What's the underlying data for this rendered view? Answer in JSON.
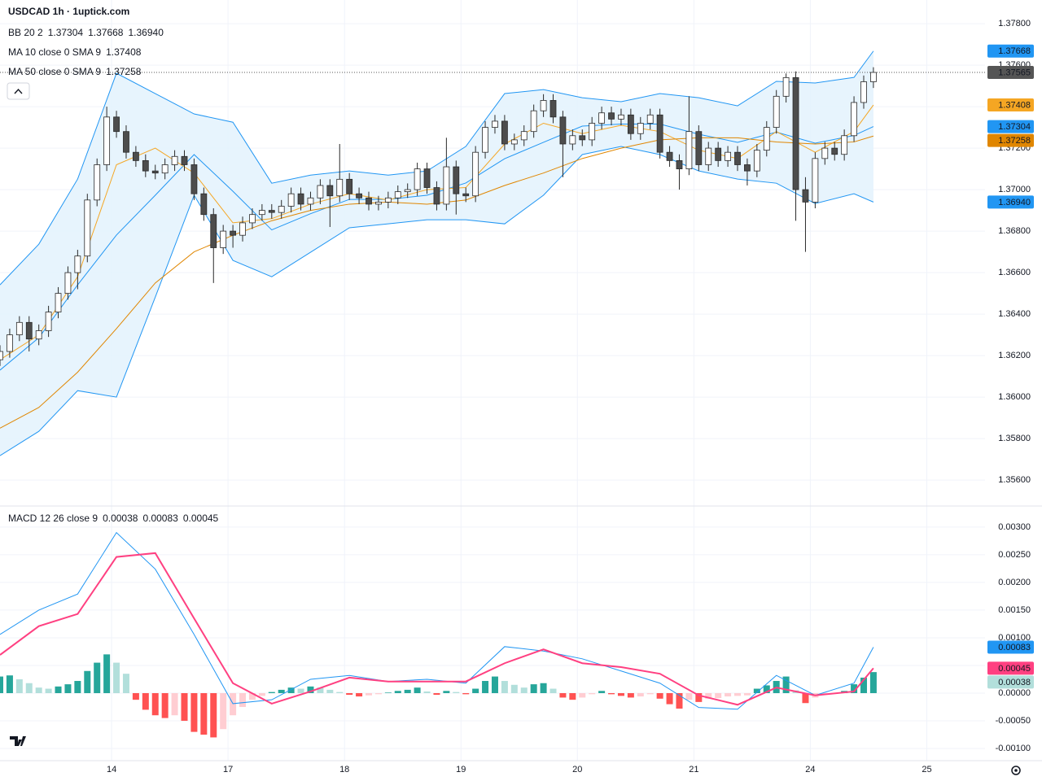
{
  "chart_data": [
    {
      "type": "candlestick",
      "title": "USDCAD 1h · 1uptick.com",
      "x": [
        1,
        3,
        5,
        7,
        9,
        11,
        13,
        15,
        17,
        19,
        21,
        23,
        25,
        27,
        29,
        31,
        33,
        35,
        37,
        39,
        41,
        43,
        45,
        47,
        49,
        51,
        53,
        55,
        57,
        59,
        61,
        63,
        65,
        67,
        69,
        71,
        73,
        75,
        77,
        79,
        81,
        83,
        85,
        87,
        89,
        91,
        93,
        95,
        97,
        99,
        101,
        103,
        105,
        107,
        109,
        111,
        113,
        115,
        117,
        119,
        121,
        123,
        125,
        127,
        129,
        131,
        133,
        135,
        137,
        139,
        141,
        143,
        145,
        147,
        149,
        151,
        153,
        155,
        157,
        159,
        161,
        163,
        165,
        167,
        169,
        171,
        173,
        175,
        177,
        179,
        181
      ],
      "open": [
        1.3618,
        1.3622,
        1.363,
        1.3636,
        1.3628,
        1.3632,
        1.3641,
        1.365,
        1.366,
        1.3668,
        1.3695,
        1.3712,
        1.3735,
        1.3728,
        1.3718,
        1.3714,
        1.3709,
        1.3708,
        1.3712,
        1.3716,
        1.3712,
        1.3698,
        1.3688,
        1.3672,
        1.368,
        1.3678,
        1.3684,
        1.3688,
        1.369,
        1.3689,
        1.3692,
        1.3698,
        1.3693,
        1.3696,
        1.3702,
        1.3697,
        1.3705,
        1.3698,
        1.3696,
        1.3693,
        1.3694,
        1.3696,
        1.3699,
        1.37,
        1.371,
        1.3701,
        1.3693,
        1.3711,
        1.3698,
        1.3697,
        1.3718,
        1.373,
        1.3733,
        1.3722,
        1.3724,
        1.3728,
        1.3738,
        1.3743,
        1.3735,
        1.3722,
        1.3726,
        1.3724,
        1.3732,
        1.3737,
        1.3734,
        1.3736,
        1.3727,
        1.3732,
        1.3736,
        1.3718,
        1.3714,
        1.371,
        1.3728,
        1.3712,
        1.372,
        1.3714,
        1.3718,
        1.3712,
        1.3709,
        1.3719,
        1.373,
        1.3745,
        1.3754,
        1.37,
        1.3694,
        1.3715,
        1.372,
        1.3717,
        1.3726,
        1.3742,
        1.3752
      ],
      "high": [
        1.3625,
        1.3633,
        1.3639,
        1.3639,
        1.3635,
        1.3644,
        1.3653,
        1.3663,
        1.3671,
        1.3698,
        1.3715,
        1.374,
        1.3738,
        1.3731,
        1.3721,
        1.3717,
        1.3712,
        1.3715,
        1.3719,
        1.3719,
        1.3715,
        1.3701,
        1.3691,
        1.3683,
        1.3683,
        1.3687,
        1.3691,
        1.3693,
        1.3693,
        1.3695,
        1.3701,
        1.3701,
        1.3699,
        1.3705,
        1.3705,
        1.3722,
        1.3708,
        1.3701,
        1.3699,
        1.3697,
        1.3699,
        1.3702,
        1.3703,
        1.3713,
        1.3713,
        1.3704,
        1.3725,
        1.3714,
        1.3701,
        1.3721,
        1.3733,
        1.3736,
        1.3736,
        1.3727,
        1.3731,
        1.3741,
        1.3746,
        1.3746,
        1.3738,
        1.3729,
        1.3729,
        1.3735,
        1.374,
        1.374,
        1.3739,
        1.3739,
        1.3735,
        1.3739,
        1.3739,
        1.3721,
        1.3717,
        1.3745,
        1.3731,
        1.3723,
        1.3723,
        1.3721,
        1.3721,
        1.3715,
        1.3722,
        1.3733,
        1.3748,
        1.3756,
        1.3757,
        1.3706,
        1.3718,
        1.3723,
        1.3723,
        1.3729,
        1.3745,
        1.3755,
        1.3759
      ],
      "low": [
        1.3615,
        1.3619,
        1.3627,
        1.3622,
        1.3625,
        1.3629,
        1.3638,
        1.3647,
        1.3652,
        1.3665,
        1.3692,
        1.3709,
        1.3725,
        1.3715,
        1.3711,
        1.3706,
        1.3705,
        1.3705,
        1.3709,
        1.3709,
        1.3695,
        1.3685,
        1.3655,
        1.3669,
        1.3672,
        1.3675,
        1.3681,
        1.3685,
        1.3686,
        1.3686,
        1.3689,
        1.369,
        1.369,
        1.3693,
        1.3682,
        1.3694,
        1.3695,
        1.3693,
        1.369,
        1.369,
        1.3691,
        1.3693,
        1.3696,
        1.3697,
        1.3698,
        1.369,
        1.369,
        1.3688,
        1.3694,
        1.3694,
        1.3715,
        1.3727,
        1.3719,
        1.3719,
        1.3721,
        1.3725,
        1.3735,
        1.3732,
        1.3706,
        1.3719,
        1.3721,
        1.3721,
        1.3729,
        1.3731,
        1.3731,
        1.3724,
        1.3724,
        1.3729,
        1.3715,
        1.3711,
        1.37,
        1.3707,
        1.3709,
        1.3709,
        1.3711,
        1.3711,
        1.3709,
        1.3702,
        1.3706,
        1.3716,
        1.3727,
        1.3742,
        1.3685,
        1.367,
        1.3691,
        1.3712,
        1.3714,
        1.3714,
        1.3723,
        1.3739,
        1.3749
      ],
      "close": [
        1.3622,
        1.363,
        1.3636,
        1.3628,
        1.3632,
        1.3641,
        1.365,
        1.366,
        1.3668,
        1.3695,
        1.3712,
        1.3735,
        1.3728,
        1.3718,
        1.3714,
        1.3709,
        1.3708,
        1.3712,
        1.3716,
        1.3712,
        1.3698,
        1.3688,
        1.3672,
        1.368,
        1.3678,
        1.3684,
        1.3688,
        1.369,
        1.3689,
        1.3692,
        1.3698,
        1.3693,
        1.3696,
        1.3702,
        1.3697,
        1.3705,
        1.3698,
        1.3696,
        1.3693,
        1.3694,
        1.3696,
        1.3699,
        1.37,
        1.371,
        1.3701,
        1.3693,
        1.3711,
        1.3698,
        1.3697,
        1.3718,
        1.373,
        1.3733,
        1.3722,
        1.3724,
        1.3728,
        1.3738,
        1.3743,
        1.3735,
        1.3722,
        1.3726,
        1.3724,
        1.3732,
        1.3737,
        1.3734,
        1.3736,
        1.3727,
        1.3732,
        1.3736,
        1.3718,
        1.3714,
        1.371,
        1.3728,
        1.3712,
        1.372,
        1.3714,
        1.3718,
        1.3712,
        1.3709,
        1.3719,
        1.373,
        1.3745,
        1.3754,
        1.37,
        1.3694,
        1.3715,
        1.372,
        1.3717,
        1.3726,
        1.3742,
        1.3752,
        1.37565
      ],
      "up_color": "#ffffff",
      "down_color": "#4d4d4d",
      "outline_color": "#2a2a2a",
      "last_price_color": "#555555",
      "line_x": [
        1,
        9,
        17,
        25,
        33,
        41,
        49,
        57,
        65,
        73,
        81,
        89,
        97,
        105,
        113,
        121,
        129,
        137,
        145,
        153,
        161,
        169,
        177,
        181
      ],
      "indicators": [
        {
          "name": "BB 20 2",
          "color": "#2196f3",
          "fill": "#e3f2fd",
          "series": [
            {
              "values": [
                1.3613,
                1.36286,
                1.36541,
                1.36781,
                1.36973,
                1.37169,
                1.36992,
                1.36806,
                1.36884,
                1.36953,
                1.36953,
                1.36973,
                1.37032,
                1.37149,
                1.37228,
                1.37306,
                1.37316,
                1.37316,
                1.37267,
                1.37228,
                1.37277,
                1.37224,
                1.37261,
                1.37304
              ]
            },
            {
              "values": [
                1.36541,
                1.36737,
                1.37051,
                1.37561,
                1.37463,
                1.37365,
                1.37325,
                1.37031,
                1.3707,
                1.3709,
                1.3707,
                1.3709,
                1.37208,
                1.37463,
                1.37482,
                1.37443,
                1.37424,
                1.37463,
                1.37443,
                1.37404,
                1.37522,
                1.37514,
                1.37541,
                1.37668
              ]
            },
            {
              "values": [
                1.35718,
                1.35835,
                1.36031,
                1.36,
                1.36482,
                1.36973,
                1.36659,
                1.3658,
                1.36698,
                1.36816,
                1.36835,
                1.36855,
                1.36855,
                1.36835,
                1.36973,
                1.37169,
                1.37208,
                1.37169,
                1.3709,
                1.37051,
                1.37031,
                1.36933,
                1.3698,
                1.3694
              ],
              "value_labels": [
                null,
                null,
                null,
                null,
                null,
                null,
                null,
                null,
                null,
                null,
                null,
                null,
                null,
                null,
                null,
                null,
                null,
                null,
                null,
                null,
                null,
                null,
                null,
                "1.36940"
              ]
            }
          ]
        },
        {
          "name": "MA 10 close 0 SMA 9",
          "color": "#f5a623",
          "values": [
            1.3618,
            1.363,
            1.3658,
            1.3712,
            1.372,
            1.3708,
            1.3684,
            1.3686,
            1.3693,
            1.3698,
            1.3695,
            1.37,
            1.3701,
            1.3722,
            1.3732,
            1.3727,
            1.3731,
            1.3728,
            1.3719,
            1.3715,
            1.3728,
            1.3718,
            1.3728,
            1.37408
          ]
        },
        {
          "name": "MA 50 close 0 SMA 9",
          "color": "#e08600",
          "values": [
            1.3585,
            1.3595,
            1.3612,
            1.3633,
            1.3655,
            1.367,
            1.3678,
            1.3685,
            1.369,
            1.3693,
            1.3694,
            1.3693,
            1.3695,
            1.3702,
            1.3708,
            1.3715,
            1.372,
            1.3724,
            1.3725,
            1.3725,
            1.3723,
            1.3722,
            1.3723,
            1.37258
          ]
        }
      ],
      "xlim": [
        1,
        204
      ],
      "ylim": [
        1.35475,
        1.37914
      ],
      "yticks": [
        {
          "value": 1.356,
          "label": "1.35600"
        },
        {
          "value": 1.358,
          "label": "1.35800"
        },
        {
          "value": 1.36,
          "label": "1.36000"
        },
        {
          "value": 1.362,
          "label": "1.36200"
        },
        {
          "value": 1.364,
          "label": "1.36400"
        },
        {
          "value": 1.366,
          "label": "1.36600"
        },
        {
          "value": 1.368,
          "label": "1.36800"
        },
        {
          "value": 1.37,
          "label": "1.37000"
        },
        {
          "value": 1.372,
          "label": "1.37200"
        },
        {
          "value": 1.374,
          "label": "1.37400"
        },
        {
          "value": 1.376,
          "label": "1.37600"
        },
        {
          "value": 1.378,
          "label": "1.37800"
        }
      ],
      "grid": true
    },
    {
      "type": "macd",
      "name": "MACD 12 26 close 9",
      "x": [
        1,
        3,
        5,
        7,
        9,
        11,
        13,
        15,
        17,
        19,
        21,
        23,
        25,
        27,
        29,
        31,
        33,
        35,
        37,
        39,
        41,
        43,
        45,
        47,
        49,
        51,
        53,
        55,
        57,
        59,
        61,
        63,
        65,
        67,
        69,
        71,
        73,
        75,
        77,
        79,
        81,
        83,
        85,
        87,
        89,
        91,
        93,
        95,
        97,
        99,
        101,
        103,
        105,
        107,
        109,
        111,
        113,
        115,
        117,
        119,
        121,
        123,
        125,
        127,
        129,
        131,
        133,
        135,
        137,
        139,
        141,
        143,
        145,
        147,
        149,
        151,
        153,
        155,
        157,
        159,
        161,
        163,
        165,
        167,
        169,
        171,
        173,
        175,
        177,
        179,
        181
      ],
      "histogram": {
        "values": [
          0.0003,
          0.00032,
          0.00025,
          0.00018,
          0.0001,
          8e-05,
          0.00012,
          0.00016,
          0.00022,
          0.0004,
          0.00055,
          0.0007,
          0.00055,
          0.00035,
          -0.00012,
          -0.0003,
          -0.0004,
          -0.00045,
          -0.0004,
          -0.0005,
          -0.0007,
          -0.00075,
          -0.0008,
          -0.00065,
          -0.0004,
          -0.00025,
          -0.00012,
          -5e-05,
          2e-05,
          6e-05,
          0.0001,
          8e-05,
          0.00012,
          0.0001,
          6e-05,
          2e-05,
          -3e-05,
          -6e-05,
          -4e-05,
          -2e-05,
          1e-05,
          4e-05,
          6e-05,
          0.0001,
          3e-05,
          -3e-05,
          4e-05,
          2e-05,
          -2e-05,
          8e-05,
          0.00022,
          0.0003,
          0.00022,
          0.00015,
          0.0001,
          0.00016,
          0.00018,
          8e-05,
          -8e-05,
          -0.00012,
          -8e-05,
          -2e-05,
          4e-05,
          -2e-05,
          -5e-05,
          -8e-05,
          -6e-05,
          -2e-05,
          -0.0001,
          -0.0002,
          -0.00028,
          -0.00012,
          -0.00016,
          -0.0001,
          -9e-05,
          -6e-05,
          -5e-05,
          -4e-05,
          8e-05,
          0.00014,
          0.00022,
          0.0003,
          5e-05,
          -0.00018,
          -8e-05,
          -2e-05,
          -1e-05,
          4e-05,
          0.00016,
          0.00028,
          0.00038
        ],
        "colors": [
          "#26a69a",
          "#b2dfdb",
          "#ffcdd2",
          "#ff5252"
        ]
      },
      "line_x": [
        1,
        9,
        17,
        25,
        33,
        41,
        49,
        57,
        65,
        73,
        81,
        89,
        97,
        105,
        113,
        121,
        129,
        137,
        145,
        153,
        161,
        169,
        177,
        181
      ],
      "macd": {
        "color": "#2196f3",
        "values": [
          0.00106,
          0.0015,
          0.00179,
          0.0029,
          0.00224,
          0.00106,
          -0.00019,
          -0.00012,
          0.00025,
          0.00032,
          0.00021,
          0.00025,
          0.00018,
          0.00084,
          0.00076,
          0.00062,
          0.0004,
          0.00018,
          -0.00026,
          -0.00029,
          0.00032,
          -4e-05,
          0.00018,
          0.00083
        ]
      },
      "signal": {
        "color": "#ff4081",
        "values": [
          0.00069,
          0.00121,
          0.00143,
          0.00246,
          0.00253,
          0.00135,
          0.00018,
          -0.00019,
          3e-05,
          0.00028,
          0.00021,
          0.00021,
          0.00021,
          0.00054,
          0.00079,
          0.00054,
          0.00047,
          0.00035,
          -4e-05,
          -0.00021,
          0.0001,
          -4e-05,
          3e-05,
          0.00045
        ]
      },
      "xlim": [
        1,
        204
      ],
      "ylim": [
        -0.00122,
        0.00338
      ],
      "yticks": [
        {
          "value": -0.001,
          "label": "-0.00100"
        },
        {
          "value": -0.0005,
          "label": "-0.00050"
        },
        {
          "value": 0,
          "label": "0.00000"
        },
        {
          "value": 0.0005,
          "label": "0.00050"
        },
        {
          "value": 0.001,
          "label": "0.00100"
        },
        {
          "value": 0.0015,
          "label": "0.00150"
        },
        {
          "value": 0.002,
          "label": "0.00200"
        },
        {
          "value": 0.0025,
          "label": "0.00250"
        },
        {
          "value": 0.003,
          "label": "0.00300"
        }
      ],
      "xticks": [
        {
          "value": 24,
          "label": "14"
        },
        {
          "value": 48,
          "label": "17"
        },
        {
          "value": 72,
          "label": "18"
        },
        {
          "value": 96,
          "label": "19"
        },
        {
          "value": 120,
          "label": "20"
        },
        {
          "value": 144,
          "label": "21"
        },
        {
          "value": 168,
          "label": "24"
        },
        {
          "value": 192,
          "label": "25"
        }
      ],
      "grid": true
    }
  ]
}
